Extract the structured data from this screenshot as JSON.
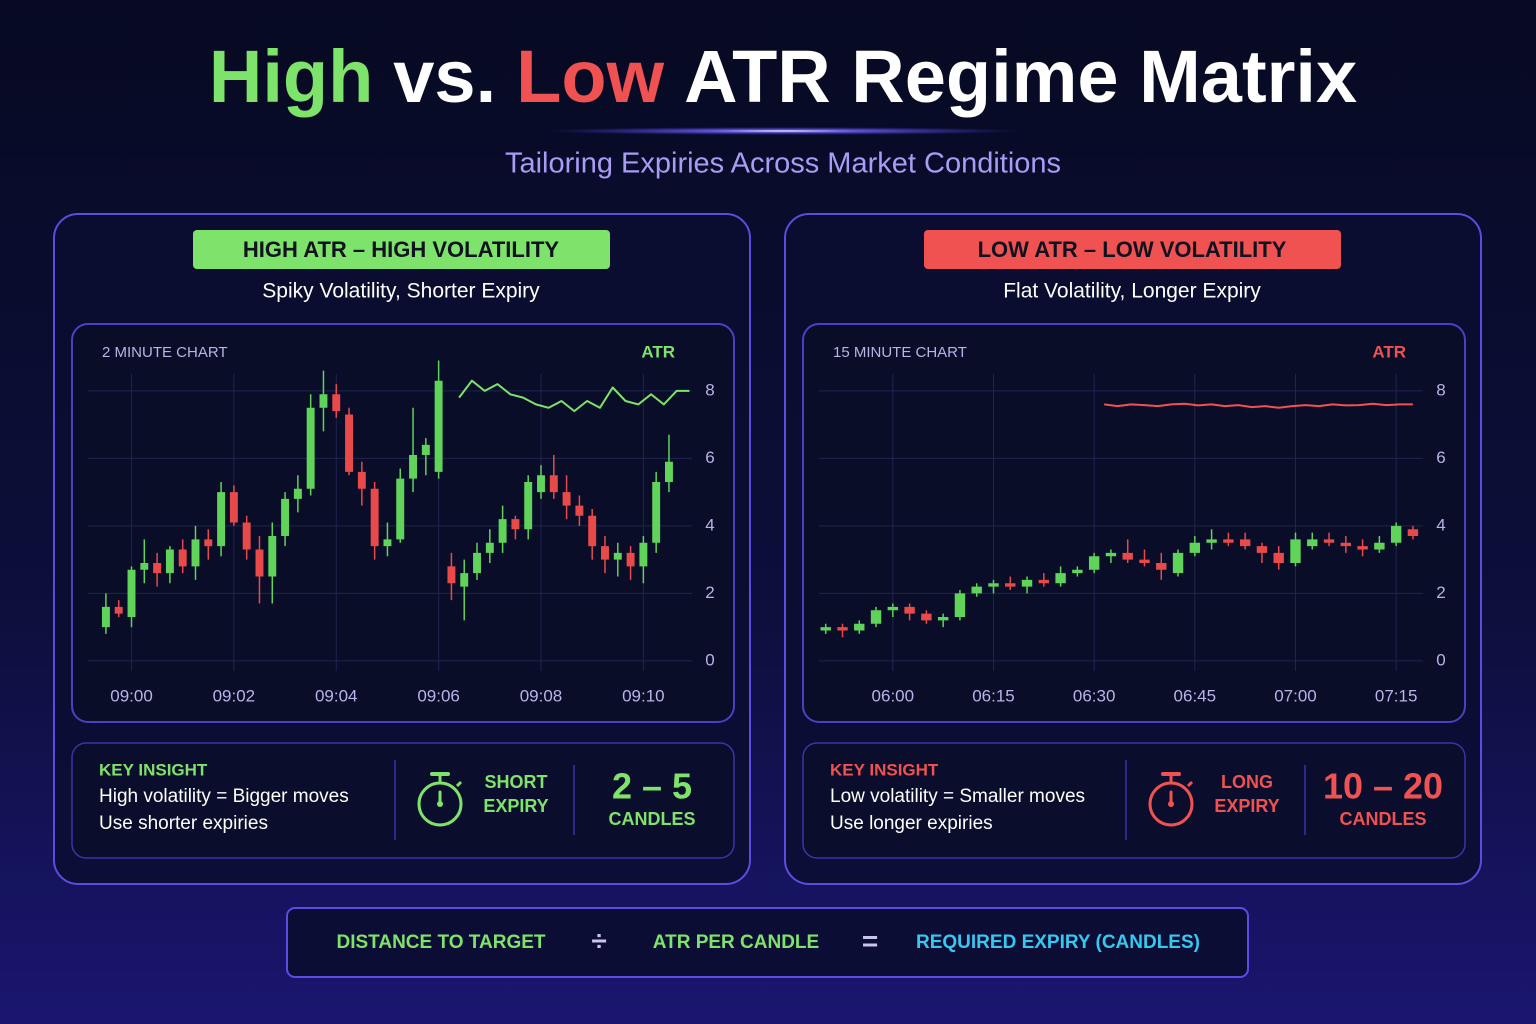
{
  "title": {
    "high": "High",
    "vs": "vs.",
    "low": "Low",
    "rest": "ATR Regime Matrix"
  },
  "subtitle": "Tailoring Expiries Across Market Conditions",
  "panels": [
    {
      "badge": "HIGH ATR – HIGH VOLATILITY",
      "caption": "Spiky Volatility, Shorter Expiry",
      "accent": "#7ee36a",
      "insight_label": "KEY INSIGHT",
      "insight_lines": [
        "High volatility = Bigger moves",
        "Use shorter expiries"
      ],
      "expiry_label": [
        "SHORT",
        "EXPIRY"
      ],
      "range": "2 – 5",
      "range_unit": "CANDLES"
    },
    {
      "badge": "LOW ATR – LOW VOLATILITY",
      "caption": "Flat Volatility, Longer Expiry",
      "accent": "#f05252",
      "insight_label": "KEY INSIGHT",
      "insight_lines": [
        "Low volatility = Smaller moves",
        "Use longer expiries"
      ],
      "expiry_label": [
        "LONG",
        "EXPIRY"
      ],
      "range": "10 – 20",
      "range_unit": "CANDLES"
    }
  ],
  "chart_data": [
    {
      "type": "candlestick",
      "title": "2 MINUTE CHART",
      "up_color": "#5fd35a",
      "down_color": "#e84a4a",
      "x": [
        -0.5,
        -0.25,
        0,
        0.25,
        0.5,
        0.75,
        1,
        1.25,
        1.5,
        1.75,
        2,
        2.25,
        2.5,
        2.75,
        3,
        3.25,
        3.5,
        3.75,
        4,
        4.25,
        4.5,
        4.75,
        5,
        5.25,
        5.5,
        5.75,
        6,
        6.25,
        6.5,
        6.75,
        7,
        7.25,
        7.5,
        7.75,
        8,
        8.25,
        8.5,
        8.75,
        9,
        9.25,
        9.5,
        9.75,
        10,
        10.25,
        10.5
      ],
      "open": [
        1.0,
        1.6,
        1.3,
        2.7,
        2.9,
        2.6,
        3.3,
        2.8,
        3.6,
        3.4,
        5.0,
        4.1,
        3.3,
        2.5,
        3.7,
        4.8,
        5.1,
        7.5,
        7.9,
        7.3,
        5.6,
        5.1,
        3.4,
        3.6,
        5.4,
        6.1,
        5.6,
        2.8,
        2.2,
        2.6,
        3.2,
        3.5,
        4.2,
        3.9,
        5.0,
        5.5,
        5.0,
        4.6,
        4.3,
        3.4,
        3.0,
        3.2,
        2.8,
        3.5,
        5.3
      ],
      "high": [
        2.0,
        1.8,
        2.8,
        3.6,
        3.2,
        3.4,
        3.6,
        4.0,
        3.9,
        5.3,
        5.2,
        4.3,
        3.7,
        4.1,
        5.0,
        5.5,
        7.9,
        8.6,
        8.2,
        7.5,
        5.9,
        5.3,
        4.1,
        5.7,
        7.5,
        6.6,
        8.9,
        3.2,
        3.0,
        3.5,
        3.9,
        4.6,
        4.3,
        5.5,
        5.8,
        6.1,
        5.5,
        4.9,
        4.5,
        3.7,
        3.5,
        3.4,
        3.7,
        5.6,
        6.7
      ],
      "low": [
        0.8,
        1.3,
        1.0,
        2.3,
        2.2,
        2.3,
        2.6,
        2.4,
        3.0,
        3.1,
        4.0,
        3.0,
        1.7,
        1.7,
        3.4,
        4.4,
        4.9,
        6.8,
        7.2,
        5.5,
        4.6,
        3.0,
        3.1,
        3.5,
        5.0,
        5.5,
        5.4,
        1.8,
        1.2,
        2.4,
        2.9,
        3.2,
        3.6,
        3.6,
        4.8,
        4.8,
        4.2,
        4.0,
        3.0,
        2.6,
        2.5,
        2.4,
        2.3,
        3.2,
        5.0
      ],
      "close": [
        1.6,
        1.4,
        2.7,
        2.9,
        2.6,
        3.3,
        2.8,
        3.6,
        3.4,
        5.0,
        4.1,
        3.3,
        2.5,
        3.7,
        4.8,
        5.1,
        7.5,
        7.9,
        7.4,
        5.6,
        5.1,
        3.4,
        3.6,
        5.4,
        6.1,
        6.4,
        8.3,
        2.3,
        2.6,
        3.2,
        3.5,
        4.2,
        3.9,
        5.3,
        5.5,
        5.0,
        4.6,
        4.3,
        3.4,
        3.0,
        3.2,
        2.8,
        3.5,
        5.3,
        5.9
      ],
      "series": [
        {
          "name": "ATR",
          "color": "#7ee36a",
          "x": [
            6.4,
            6.65,
            6.9,
            7.15,
            7.4,
            7.65,
            7.9,
            8.15,
            8.4,
            8.65,
            8.9,
            9.15,
            9.4,
            9.65,
            9.9,
            10.15,
            10.4,
            10.65,
            10.9
          ],
          "values": [
            7.8,
            8.3,
            8.0,
            8.2,
            7.9,
            7.8,
            7.6,
            7.5,
            7.7,
            7.4,
            7.7,
            7.5,
            8.1,
            7.7,
            7.6,
            7.9,
            7.6,
            8.0,
            8.0
          ]
        }
      ],
      "xlim": [
        -0.85,
        10.95
      ],
      "xticks": [
        {
          "value": 0,
          "label": "09:00"
        },
        {
          "value": 2,
          "label": "09:02"
        },
        {
          "value": 4,
          "label": "09:04"
        },
        {
          "value": 6,
          "label": "09:06"
        },
        {
          "value": 8,
          "label": "09:08"
        },
        {
          "value": 10,
          "label": "09:10"
        }
      ],
      "ylim": [
        -0.3,
        8.5
      ],
      "yticks": [
        0,
        2,
        4,
        6,
        8
      ],
      "grid": true
    },
    {
      "type": "candlestick",
      "title": "15 MINUTE CHART",
      "up_color": "#5fd35a",
      "down_color": "#e84a4a",
      "x": [
        -10,
        -7.5,
        -5,
        -2.5,
        0,
        2.5,
        5,
        7.5,
        10,
        12.5,
        15,
        17.5,
        20,
        22.5,
        25,
        27.5,
        30,
        32.5,
        35,
        37.5,
        40,
        42.5,
        45,
        47.5,
        50,
        52.5,
        55,
        57.5,
        60,
        62.5,
        65,
        67.5,
        70,
        72.5,
        75,
        77.5
      ],
      "open": [
        0.9,
        1.0,
        0.9,
        1.1,
        1.5,
        1.6,
        1.4,
        1.2,
        1.3,
        2.0,
        2.2,
        2.3,
        2.2,
        2.4,
        2.3,
        2.6,
        2.7,
        3.1,
        3.2,
        3.0,
        2.9,
        2.6,
        3.2,
        3.5,
        3.6,
        3.6,
        3.4,
        3.2,
        2.9,
        3.4,
        3.6,
        3.5,
        3.4,
        3.3,
        3.5,
        3.9
      ],
      "high": [
        1.1,
        1.1,
        1.2,
        1.6,
        1.7,
        1.7,
        1.5,
        1.4,
        2.1,
        2.3,
        2.4,
        2.5,
        2.5,
        2.6,
        2.8,
        2.8,
        3.2,
        3.3,
        3.6,
        3.3,
        3.2,
        3.3,
        3.7,
        3.9,
        3.8,
        3.8,
        3.5,
        3.4,
        3.8,
        3.8,
        3.8,
        3.7,
        3.6,
        3.7,
        4.1,
        4.0
      ],
      "low": [
        0.8,
        0.7,
        0.8,
        1.0,
        1.3,
        1.2,
        1.1,
        1.0,
        1.2,
        1.9,
        2.0,
        2.1,
        2.0,
        2.2,
        2.2,
        2.5,
        2.6,
        2.9,
        2.9,
        2.8,
        2.4,
        2.5,
        3.1,
        3.3,
        3.4,
        3.3,
        2.9,
        2.7,
        2.8,
        3.3,
        3.4,
        3.2,
        3.1,
        3.2,
        3.4,
        3.6
      ],
      "close": [
        1.0,
        0.9,
        1.1,
        1.5,
        1.6,
        1.4,
        1.2,
        1.3,
        2.0,
        2.2,
        2.3,
        2.2,
        2.4,
        2.3,
        2.6,
        2.7,
        3.1,
        3.2,
        3.0,
        2.9,
        2.7,
        3.2,
        3.5,
        3.6,
        3.5,
        3.4,
        3.2,
        2.9,
        3.6,
        3.6,
        3.5,
        3.4,
        3.3,
        3.5,
        4.0,
        3.7
      ],
      "series": [
        {
          "name": "ATR",
          "color": "#f05252",
          "x": [
            31.5,
            33.5,
            35.5,
            37.5,
            39.5,
            41.5,
            43.5,
            45.5,
            47.5,
            49.5,
            51.5,
            53.5,
            55.5,
            57.5,
            59.5,
            61.5,
            63.5,
            65.5,
            67.5,
            69.5,
            71.5,
            73.5,
            75.5,
            77.5
          ],
          "values": [
            7.6,
            7.55,
            7.6,
            7.58,
            7.55,
            7.6,
            7.62,
            7.57,
            7.6,
            7.55,
            7.58,
            7.52,
            7.55,
            7.5,
            7.55,
            7.58,
            7.55,
            7.6,
            7.57,
            7.58,
            7.62,
            7.58,
            7.6,
            7.6
          ]
        }
      ],
      "xlim": [
        -11,
        79
      ],
      "xticks": [
        {
          "value": 0,
          "label": "06:00"
        },
        {
          "value": 15,
          "label": "06:15"
        },
        {
          "value": 30,
          "label": "06:30"
        },
        {
          "value": 45,
          "label": "06:45"
        },
        {
          "value": 60,
          "label": "07:00"
        },
        {
          "value": 75,
          "label": "07:15"
        }
      ],
      "ylim": [
        -0.3,
        8.5
      ],
      "yticks": [
        0,
        2,
        4,
        6,
        8
      ],
      "grid": true
    }
  ],
  "formula": [
    "DISTANCE TO TARGET",
    "÷",
    "ATR PER CANDLE",
    "=",
    "REQUIRED EXPIRY (CANDLES)"
  ]
}
